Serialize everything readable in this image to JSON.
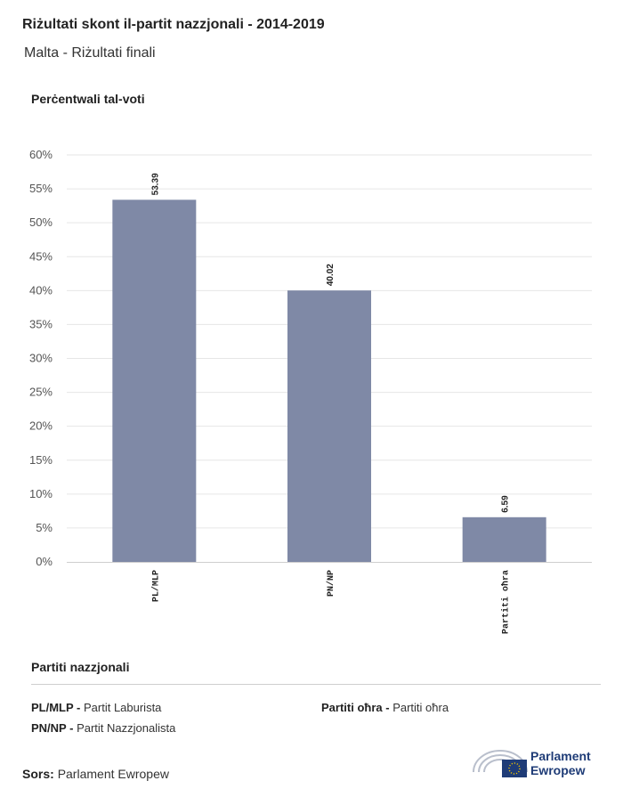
{
  "title": "Riżultati skont il-partit nazzjonali - 2014-2019",
  "subtitle": "Malta - Riżultati finali",
  "chart_data": {
    "type": "bar",
    "ylabel": "Perċentwali tal-voti",
    "categories": [
      "PL/MLP",
      "PN/NP",
      "Partiti oħra"
    ],
    "values": [
      53.39,
      40.02,
      6.59
    ],
    "value_labels": [
      "53.39",
      "40.02",
      "6.59"
    ],
    "ylim": [
      0,
      60
    ],
    "yticks": [
      "0%",
      "5%",
      "10%",
      "15%",
      "20%",
      "25%",
      "30%",
      "35%",
      "40%",
      "45%",
      "50%",
      "55%",
      "60%"
    ],
    "grid": true,
    "bar_color": "#7f89a6"
  },
  "legend": {
    "title": "Partiti nazzjonali",
    "items": [
      {
        "abbr": "PL/MLP - ",
        "name": "Partit Laburista"
      },
      {
        "abbr": "PN/NP - ",
        "name": "Partit Nazzjonalista"
      },
      {
        "abbr": "Partiti oħra - ",
        "name": "Partiti oħra"
      }
    ]
  },
  "source": {
    "label": "Sors:",
    "value": "Parlament Ewropew"
  },
  "logo": {
    "line1": "Parlament",
    "line2": "Ewropew",
    "color": "#1f3c77"
  }
}
